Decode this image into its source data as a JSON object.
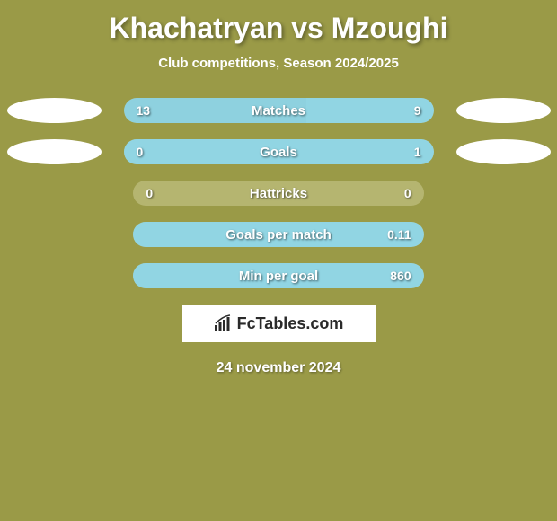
{
  "title": "Khachatryan vs Mzoughi",
  "subtitle": "Club competitions, Season 2024/2025",
  "background_color": "#9a9a47",
  "bar_colors": {
    "fill_left": "#8ed1df",
    "fill_right": "#91d5e3",
    "empty": "#b5b570"
  },
  "stats": [
    {
      "label": "Matches",
      "left_value": "13",
      "right_value": "9",
      "left_pct": 59,
      "right_pct": 41,
      "show_ellipses": true
    },
    {
      "label": "Goals",
      "left_value": "0",
      "right_value": "1",
      "left_pct": 0,
      "right_pct": 100,
      "show_ellipses": true
    },
    {
      "label": "Hattricks",
      "left_value": "0",
      "right_value": "0",
      "left_pct": 0,
      "right_pct": 0,
      "show_ellipses": false
    },
    {
      "label": "Goals per match",
      "left_value": "",
      "right_value": "0.11",
      "left_pct": 0,
      "right_pct": 100,
      "show_ellipses": false
    },
    {
      "label": "Min per goal",
      "left_value": "",
      "right_value": "860",
      "left_pct": 0,
      "right_pct": 100,
      "show_ellipses": false
    }
  ],
  "logo_text": "FcTables.com",
  "date": "24 november 2024"
}
